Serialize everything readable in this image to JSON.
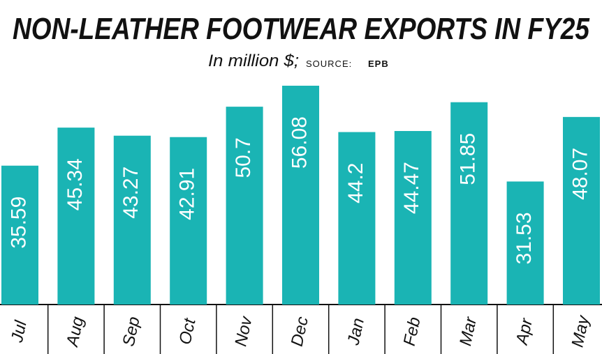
{
  "chart_data": {
    "type": "bar",
    "title": "NON-LEATHER FOOTWEAR EXPORTS IN FY25",
    "subtitle": "In million $;",
    "source_label": "SOURCE:",
    "source": "EPB",
    "categories": [
      "Jul",
      "Aug",
      "Sep",
      "Oct",
      "Nov",
      "Dec",
      "Jan",
      "Feb",
      "Mar",
      "Apr",
      "May"
    ],
    "values": [
      35.59,
      45.34,
      43.27,
      42.91,
      50.7,
      56.08,
      44.2,
      44.47,
      51.85,
      31.53,
      48.07
    ],
    "color": "#1ab4b4"
  }
}
